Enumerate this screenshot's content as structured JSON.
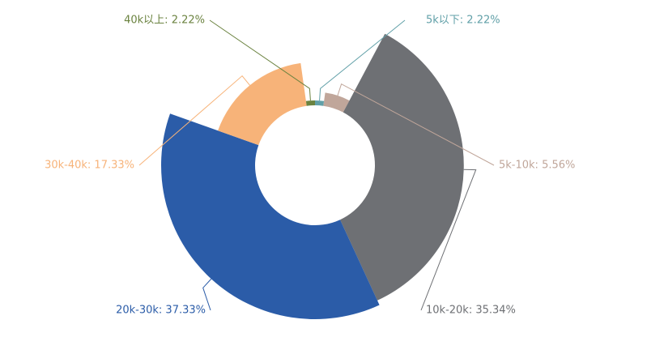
{
  "chart_data": {
    "type": "pie",
    "subtype": "nightingale-rose-donut",
    "slices": [
      {
        "name": "5k以下",
        "value": 2.22,
        "color": "#61a0a8",
        "label": "5k以下: 2.22%"
      },
      {
        "name": "5k-10k",
        "value": 5.56,
        "color": "#c0a69a",
        "label": "5k-10k: 5.56%"
      },
      {
        "name": "10k-20k",
        "value": 35.34,
        "color": "#6e7074",
        "label": "10k-20k: 35.34%"
      },
      {
        "name": "20k-30k",
        "value": 37.33,
        "color": "#2b5ca8",
        "label": "20k-30k: 37.33%"
      },
      {
        "name": "30k-40k",
        "value": 17.33,
        "color": "#f7b379",
        "label": "30k-40k: 17.33%"
      },
      {
        "name": "40k以上",
        "value": 2.22,
        "color": "#6b8340",
        "label": "40k以上: 2.22%"
      }
    ],
    "legend": "none"
  }
}
